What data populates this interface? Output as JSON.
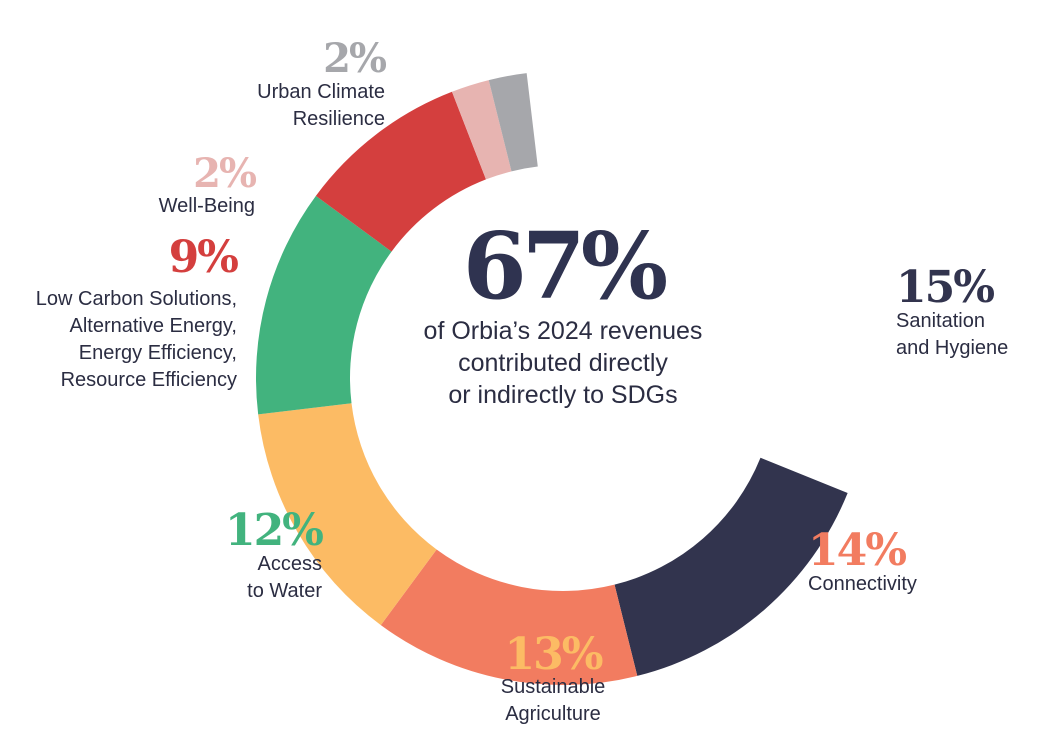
{
  "chart_data": {
    "type": "donut",
    "center": {
      "value": "67%",
      "lines": [
        "of Orbia’s 2024 revenues",
        "contributed directly",
        "or indirectly to SDGs"
      ]
    },
    "total_percent": 67,
    "slices": [
      {
        "value": 15,
        "percent_label": "15%",
        "label_lines": [
          "Sanitation",
          "and Hygiene"
        ],
        "color": "#32344e"
      },
      {
        "value": 14,
        "percent_label": "14%",
        "label_lines": [
          "Connectivity"
        ],
        "color": "#f27c60"
      },
      {
        "value": 13,
        "percent_label": "13%",
        "label_lines": [
          "Sustainable",
          "Agriculture"
        ],
        "color": "#fcbb64"
      },
      {
        "value": 12,
        "percent_label": "12%",
        "label_lines": [
          "Access",
          "to Water"
        ],
        "color": "#42b37e"
      },
      {
        "value": 9,
        "percent_label": "9%",
        "label_lines": [
          "Low Carbon Solutions,",
          "Alternative Energy,",
          "Energy Efficiency,",
          "Resource Efficiency"
        ],
        "color": "#d43f3e"
      },
      {
        "value": 2,
        "percent_label": "2%",
        "label_lines": [
          "Well-Being"
        ],
        "color": "#e7b4b1"
      },
      {
        "value": 2,
        "percent_label": "2%",
        "label_lines": [
          "Urban Climate",
          "Resilience"
        ],
        "color": "#a6a7ab"
      }
    ]
  }
}
